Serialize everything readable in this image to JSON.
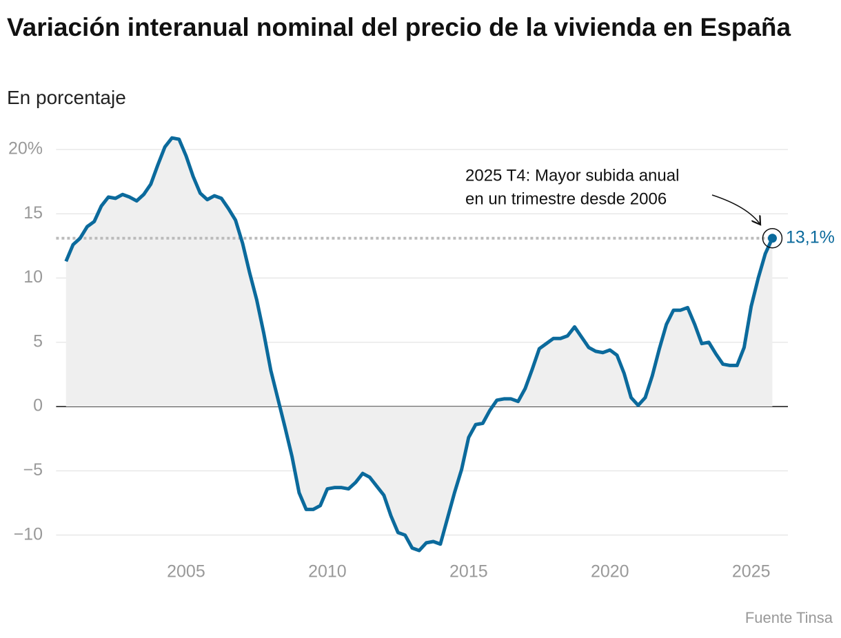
{
  "chart_data": {
    "type": "line",
    "title": "Variación interanual nominal del precio de la vivienda en España",
    "subtitle": "En porcentaje",
    "source": "Fuente Tinsa",
    "annotation": [
      "2025 T4: Mayor subida anual",
      "en un trimestre desde 2006"
    ],
    "reference_line": {
      "value": 13.1,
      "label": "13,1%"
    },
    "x": [
      2000.75,
      2001,
      2001.25,
      2001.5,
      2001.75,
      2002,
      2002.25,
      2002.5,
      2002.75,
      2003,
      2003.25,
      2003.5,
      2003.75,
      2004,
      2004.25,
      2004.5,
      2004.75,
      2005,
      2005.25,
      2005.5,
      2005.75,
      2006,
      2006.25,
      2006.5,
      2006.75,
      2007,
      2007.25,
      2007.5,
      2007.75,
      2008,
      2008.25,
      2008.5,
      2008.75,
      2009,
      2009.25,
      2009.5,
      2009.75,
      2010,
      2010.25,
      2010.5,
      2010.75,
      2011,
      2011.25,
      2011.5,
      2011.75,
      2012,
      2012.25,
      2012.5,
      2012.75,
      2013,
      2013.25,
      2013.5,
      2013.75,
      2014,
      2014.25,
      2014.5,
      2014.75,
      2015,
      2015.25,
      2015.5,
      2015.75,
      2016,
      2016.25,
      2016.5,
      2016.75,
      2017,
      2017.25,
      2017.5,
      2017.75,
      2018,
      2018.25,
      2018.5,
      2018.75,
      2019,
      2019.25,
      2019.5,
      2019.75,
      2020,
      2020.25,
      2020.5,
      2020.75,
      2021,
      2021.25,
      2021.5,
      2021.75,
      2022,
      2022.25,
      2022.5,
      2022.75,
      2023,
      2023.25,
      2023.5,
      2023.75,
      2024,
      2024.25,
      2024.5,
      2024.75,
      2025,
      2025.25,
      2025.5,
      2025.75
    ],
    "series": [
      {
        "color": "#0b6a9c",
        "fill": "#efefef",
        "values": [
          11.3,
          12.6,
          13.1,
          14.0,
          14.4,
          15.6,
          16.3,
          16.2,
          16.5,
          16.3,
          16.0,
          16.5,
          17.3,
          18.8,
          20.2,
          20.9,
          20.8,
          19.5,
          17.9,
          16.6,
          16.1,
          16.4,
          16.2,
          15.4,
          14.5,
          12.7,
          10.4,
          8.3,
          5.7,
          2.8,
          0.6,
          -1.6,
          -3.9,
          -6.7,
          -8.0,
          -8.0,
          -7.7,
          -6.4,
          -6.3,
          -6.3,
          -6.4,
          -5.9,
          -5.2,
          -5.5,
          -6.2,
          -6.9,
          -8.5,
          -9.8,
          -10.0,
          -11.0,
          -11.2,
          -10.6,
          -10.5,
          -10.7,
          -8.7,
          -6.7,
          -4.9,
          -2.4,
          -1.4,
          -1.3,
          -0.3,
          0.5,
          0.6,
          0.6,
          0.4,
          1.4,
          2.9,
          4.5,
          4.9,
          5.3,
          5.3,
          5.5,
          6.2,
          5.4,
          4.6,
          4.3,
          4.2,
          4.4,
          4.0,
          2.6,
          0.7,
          0.1,
          0.7,
          2.4,
          4.5,
          6.4,
          7.5,
          7.5,
          7.7,
          6.4,
          4.9,
          5.0,
          4.1,
          3.3,
          3.2,
          3.2,
          4.6,
          7.8,
          10.0,
          11.9,
          13.1
        ]
      }
    ],
    "xlim": [
      2000.4,
      2026.3
    ],
    "xticks": [
      2005,
      2010,
      2015,
      2020,
      2025
    ],
    "ylim": [
      -12,
      21.5
    ],
    "yticks": [
      {
        "value": 20,
        "label": "20%"
      },
      15,
      10,
      5,
      0,
      {
        "value": -5,
        "label": "−5"
      },
      {
        "value": -10,
        "label": "−10"
      }
    ],
    "grid": true
  }
}
